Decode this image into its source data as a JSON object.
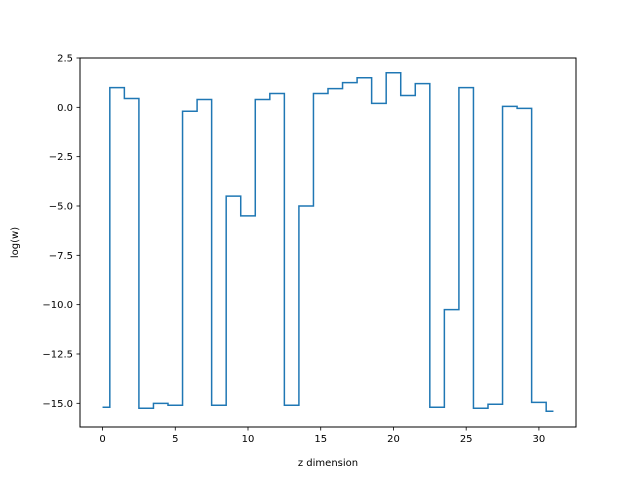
{
  "chart_data": {
    "type": "line",
    "drawstyle": "steps-mid",
    "title": "",
    "xlabel": "z dimension",
    "ylabel": "log(w)",
    "xlim": [
      -1.55,
      32.55
    ],
    "ylim": [
      -16.2,
      2.5
    ],
    "xticks": [
      0,
      5,
      10,
      15,
      20,
      25,
      30
    ],
    "yticks": [
      2.5,
      0.0,
      -2.5,
      -5.0,
      -7.5,
      -10.0,
      -12.5,
      -15.0
    ],
    "ytick_labels": [
      "2.5",
      "0.0",
      "−2.5",
      "−5.0",
      "−7.5",
      "−10.0",
      "−12.5",
      "−15.0"
    ],
    "grid": false,
    "legend": "none",
    "line_color": "#1f77b4",
    "series": [
      {
        "x": [
          0,
          1,
          2,
          3,
          4,
          5,
          6,
          7,
          8,
          9,
          10,
          11,
          12,
          13,
          14,
          15,
          16,
          17,
          18,
          19,
          20,
          21,
          22,
          23,
          24,
          25,
          26,
          27,
          28,
          29,
          30,
          31
        ],
        "values": [
          -15.2,
          1.0,
          0.45,
          -15.25,
          -15.0,
          -15.1,
          -0.2,
          0.4,
          -15.1,
          -4.5,
          -5.5,
          0.4,
          0.7,
          -15.1,
          -5.0,
          0.7,
          0.95,
          1.25,
          1.5,
          0.2,
          1.75,
          0.6,
          1.2,
          -15.2,
          -10.25,
          1.0,
          -15.25,
          -15.05,
          0.05,
          -0.05,
          -14.95,
          -15.4
        ]
      }
    ]
  }
}
